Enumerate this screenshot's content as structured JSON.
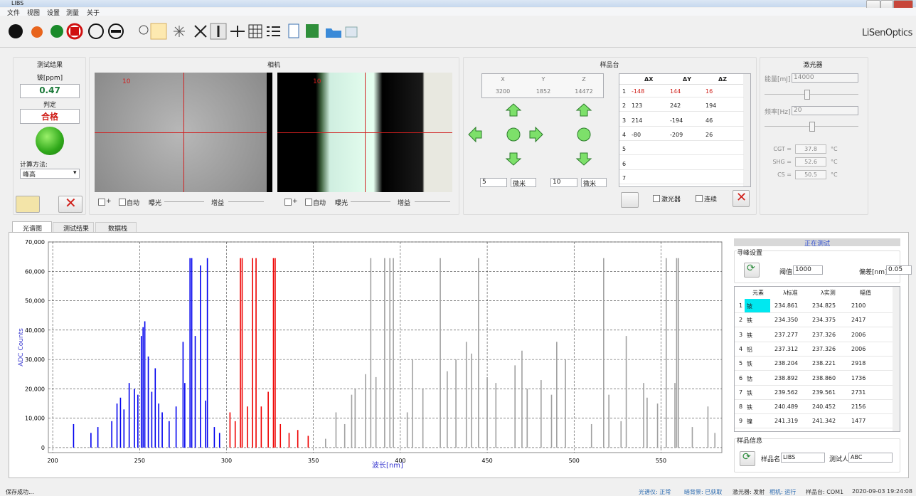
{
  "window": {
    "title": "LIBS",
    "menu": [
      "文件",
      "视图",
      "设置",
      "测量",
      "关于"
    ],
    "brand": "LiSenOptics"
  },
  "result_panel": {
    "title": "测试结果",
    "element_label": "铍[ppm]",
    "value": "0.47",
    "judgement_label": "判定",
    "judgement": "合格",
    "method_label": "计算方法:",
    "method": "峰高"
  },
  "camera_panel": {
    "title": "相机",
    "cameras": [
      {
        "scale": "10",
        "controls": [
          "+",
          "自动",
          "曝光",
          "增益"
        ]
      },
      {
        "scale": "10",
        "controls": [
          "+",
          "自动",
          "曝光",
          "增益"
        ]
      }
    ]
  },
  "stage_panel": {
    "title": "样品台",
    "axes": [
      "X",
      "Y",
      "Z"
    ],
    "position": [
      "3200",
      "1852",
      "14472"
    ],
    "steps": [
      {
        "value": "5",
        "unit": "微米"
      },
      {
        "value": "10",
        "unit": "微米"
      }
    ],
    "offsets": {
      "header": [
        "ΔX",
        "ΔY",
        "ΔZ"
      ],
      "rows": [
        [
          "1",
          "-148",
          "144",
          "16"
        ],
        [
          "2",
          "123",
          "242",
          "194"
        ],
        [
          "3",
          "214",
          "-194",
          "46"
        ],
        [
          "4",
          "-80",
          "-209",
          "26"
        ],
        [
          "5"
        ],
        [
          "6"
        ],
        [
          "7"
        ]
      ]
    },
    "checks": [
      "激光器",
      "连续"
    ]
  },
  "laser_panel": {
    "title": "激光器",
    "energy_label": "能量[mJ]",
    "energy": "14000",
    "freq_label": "频率[Hz]",
    "freq": "20",
    "temps": [
      {
        "label": "CGT =",
        "value": "37.8",
        "unit": "°C"
      },
      {
        "label": "SHG =",
        "value": "52.6",
        "unit": "°C"
      },
      {
        "label": "CS =",
        "value": "50.5",
        "unit": "°C"
      }
    ]
  },
  "tabs": [
    "光谱图",
    "测试结果",
    "数据栈"
  ],
  "spectrum": {
    "type": "stick",
    "x_label": "波长[nm]",
    "y_label": "ADC Counts",
    "xlim": [
      197.5,
      585
    ],
    "ylim": [
      -1700,
      70000
    ],
    "xticks": [
      200,
      250,
      300,
      350,
      400,
      450,
      500,
      550
    ],
    "yticks": [
      0,
      {
        "value": 10000,
        "label": "10,000"
      },
      {
        "value": 20000,
        "label": "20,000"
      },
      {
        "value": 30000,
        "label": "30,000"
      },
      {
        "value": 40000,
        "label": "40,000"
      },
      {
        "value": 50000,
        "label": "50,000"
      },
      {
        "value": 60000,
        "label": "60,000"
      },
      {
        "value": 70000,
        "label": "70,000"
      }
    ],
    "grid": true,
    "series": [
      {
        "color": "#0000ee",
        "x": [
          212,
          222,
          226,
          234,
          237,
          239,
          241,
          244,
          247,
          249,
          251,
          252,
          253,
          255,
          257,
          259,
          261,
          263,
          267,
          271,
          275,
          276,
          279,
          280,
          282,
          285,
          288,
          289,
          293,
          296
        ],
        "values": [
          8000,
          5000,
          7000,
          9000,
          15000,
          17000,
          13000,
          22000,
          20000,
          18000,
          38000,
          41000,
          43000,
          31000,
          19000,
          27000,
          15000,
          12000,
          9000,
          14000,
          36000,
          22000,
          64500,
          64500,
          38000,
          62000,
          16000,
          64500,
          7000,
          5000
        ]
      },
      {
        "color": "#ee0000",
        "x": [
          302,
          305,
          308,
          309,
          312,
          315,
          317,
          320,
          324,
          327,
          328,
          331,
          336,
          341,
          347
        ],
        "values": [
          12000,
          9000,
          64500,
          64500,
          14000,
          64500,
          64500,
          14000,
          19000,
          64500,
          64500,
          8000,
          5000,
          6000,
          4000
        ]
      },
      {
        "color": "#a0a0a0",
        "x": [
          357,
          363,
          368,
          372,
          374,
          380,
          383,
          386,
          391,
          394,
          396,
          404,
          407,
          413,
          423,
          427,
          432,
          438,
          441,
          445,
          450,
          455,
          466,
          470,
          473,
          481,
          487,
          490,
          495,
          510,
          517,
          520,
          527,
          530,
          540,
          542,
          548,
          553,
          558,
          559,
          560,
          568,
          577,
          581
        ],
        "values": [
          3000,
          12000,
          8000,
          18000,
          20000,
          25000,
          64500,
          24000,
          64500,
          64500,
          64500,
          12000,
          30000,
          20000,
          64500,
          26000,
          30000,
          36000,
          32000,
          64500,
          24000,
          22000,
          28000,
          33000,
          20000,
          23000,
          18000,
          36000,
          30000,
          8000,
          64500,
          18000,
          9000,
          38000,
          22000,
          17000,
          15000,
          64500,
          22000,
          64500,
          64500,
          7000,
          14000,
          5000
        ]
      }
    ]
  },
  "side_panel": {
    "status": "正在测试",
    "peak_title": "寻峰设置",
    "threshold_label": "阈值",
    "threshold": "1000",
    "tolerance_label": "偏差[nm]",
    "tolerance": "0.05",
    "table": {
      "header": [
        "元素",
        "λ标准",
        "λ实测",
        "幅值"
      ],
      "rows": [
        [
          "1",
          "铍",
          "234.861",
          "234.825",
          "2100"
        ],
        [
          "2",
          "铁",
          "234.350",
          "234.375",
          "2417"
        ],
        [
          "3",
          "铁",
          "237.277",
          "237.326",
          "2006"
        ],
        [
          "4",
          "铝",
          "237.312",
          "237.326",
          "2006"
        ],
        [
          "5",
          "铁",
          "238.204",
          "238.221",
          "2918"
        ],
        [
          "6",
          "钴",
          "238.892",
          "238.860",
          "1736"
        ],
        [
          "7",
          "铁",
          "239.562",
          "239.561",
          "2731"
        ],
        [
          "8",
          "铁",
          "240.489",
          "240.452",
          "2156"
        ],
        [
          "9",
          "镍",
          "241.319",
          "241.342",
          "1477"
        ]
      ]
    },
    "sample_title": "样品信息",
    "sample_name_label": "样品名",
    "sample_name": "LIBS",
    "tester_label": "测试人",
    "tester": "ABC"
  },
  "status_bar": {
    "message": "保存成功...",
    "items": [
      "光谱仪: 正常",
      "暗背景: 已获取",
      "激光器: 发射",
      "相机: 运行",
      "样品台: COM1",
      "2020-09-03 19:24:08"
    ]
  }
}
